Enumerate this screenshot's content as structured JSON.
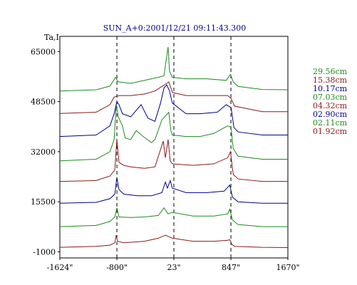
{
  "chart_data": {
    "type": "line",
    "title": "SUN_A+0:2001/12/21 09:11:43.300",
    "ylabel": "Ta,I",
    "xlabel": "",
    "xlim": [
      -1624,
      1670
    ],
    "ylim": [
      -3000,
      70000
    ],
    "x_ticks": [
      "-1624\"",
      "-800\"",
      "23\"",
      "847\"",
      "1670\""
    ],
    "x_tick_values": [
      -1624,
      -800,
      23,
      847,
      1670
    ],
    "y_ticks": [
      "65000",
      "48500",
      "32000",
      "15500",
      "-1000"
    ],
    "y_tick_values": [
      65000,
      48500,
      32000,
      15500,
      -1000
    ],
    "dashed_lines_x": [
      -800,
      23,
      847
    ],
    "grid": false,
    "legend_position": "right",
    "series": [
      {
        "name": "01.92cm",
        "color": "#8b1a1a",
        "offset": 0,
        "points": [
          [
            -1624,
            500
          ],
          [
            -1100,
            800
          ],
          [
            -900,
            1200
          ],
          [
            -830,
            2000
          ],
          [
            -810,
            4500
          ],
          [
            -790,
            2500
          ],
          [
            -700,
            2000
          ],
          [
            -400,
            2500
          ],
          [
            -200,
            3500
          ],
          [
            -100,
            4500
          ],
          [
            0,
            3500
          ],
          [
            300,
            2500
          ],
          [
            600,
            2500
          ],
          [
            800,
            2800
          ],
          [
            830,
            3000
          ],
          [
            860,
            1500
          ],
          [
            900,
            800
          ],
          [
            1300,
            500
          ],
          [
            1670,
            400
          ]
        ]
      },
      {
        "name": "02.11cm",
        "color": "#1f8a1f",
        "offset": 7000,
        "points": [
          [
            -1624,
            7300
          ],
          [
            -1100,
            7700
          ],
          [
            -900,
            9000
          ],
          [
            -830,
            10500
          ],
          [
            -800,
            13500
          ],
          [
            -770,
            10500
          ],
          [
            -600,
            10300
          ],
          [
            -400,
            10500
          ],
          [
            -200,
            11000
          ],
          [
            -120,
            13500
          ],
          [
            -60,
            11500
          ],
          [
            0,
            12000
          ],
          [
            300,
            10800
          ],
          [
            600,
            10800
          ],
          [
            800,
            11500
          ],
          [
            830,
            13000
          ],
          [
            870,
            9500
          ],
          [
            950,
            8000
          ],
          [
            1300,
            7300
          ],
          [
            1670,
            7300
          ]
        ]
      },
      {
        "name": "02.90cm",
        "color": "#00008b",
        "offset": 15000,
        "points": [
          [
            -1624,
            15000
          ],
          [
            -1100,
            15300
          ],
          [
            -900,
            16500
          ],
          [
            -830,
            18000
          ],
          [
            -800,
            23500
          ],
          [
            -770,
            19500
          ],
          [
            -700,
            18000
          ],
          [
            -500,
            17500
          ],
          [
            -300,
            17500
          ],
          [
            -150,
            18500
          ],
          [
            -100,
            22000
          ],
          [
            -70,
            20000
          ],
          [
            -30,
            22500
          ],
          [
            0,
            20000
          ],
          [
            200,
            18500
          ],
          [
            500,
            18500
          ],
          [
            750,
            19000
          ],
          [
            830,
            21000
          ],
          [
            870,
            17000
          ],
          [
            950,
            15500
          ],
          [
            1300,
            15000
          ],
          [
            1670,
            15000
          ]
        ]
      },
      {
        "name": "04.32cm",
        "color": "#8b1a1a",
        "offset": 22000,
        "points": [
          [
            -1624,
            22200
          ],
          [
            -1100,
            22500
          ],
          [
            -900,
            24000
          ],
          [
            -830,
            26000
          ],
          [
            -800,
            36000
          ],
          [
            -770,
            28500
          ],
          [
            -700,
            27500
          ],
          [
            -600,
            27000
          ],
          [
            -400,
            26500
          ],
          [
            -250,
            27000
          ],
          [
            -130,
            35500
          ],
          [
            -100,
            30000
          ],
          [
            -60,
            36000
          ],
          [
            -30,
            29000
          ],
          [
            0,
            28000
          ],
          [
            300,
            27500
          ],
          [
            600,
            28000
          ],
          [
            800,
            30000
          ],
          [
            840,
            32000
          ],
          [
            880,
            24500
          ],
          [
            950,
            23000
          ],
          [
            1300,
            22200
          ],
          [
            1670,
            22200
          ]
        ]
      },
      {
        "name": "07.03cm",
        "color": "#1f8a1f",
        "offset": 29000,
        "points": [
          [
            -1624,
            29000
          ],
          [
            -1100,
            29500
          ],
          [
            -900,
            32000
          ],
          [
            -840,
            36000
          ],
          [
            -810,
            47500
          ],
          [
            -780,
            43500
          ],
          [
            -720,
            40500
          ],
          [
            -680,
            36500
          ],
          [
            -600,
            36000
          ],
          [
            -520,
            39000
          ],
          [
            -420,
            37000
          ],
          [
            -300,
            35000
          ],
          [
            -250,
            36000
          ],
          [
            -150,
            42500
          ],
          [
            -90,
            44000
          ],
          [
            -50,
            45000
          ],
          [
            -20,
            39000
          ],
          [
            0,
            37500
          ],
          [
            200,
            37000
          ],
          [
            400,
            37000
          ],
          [
            600,
            38000
          ],
          [
            720,
            39500
          ],
          [
            800,
            40500
          ],
          [
            850,
            40000
          ],
          [
            880,
            33000
          ],
          [
            950,
            30500
          ],
          [
            1300,
            29500
          ],
          [
            1670,
            29500
          ]
        ]
      },
      {
        "name": "10.17cm",
        "color": "#00008b",
        "offset": 37000,
        "points": [
          [
            -1624,
            37000
          ],
          [
            -1100,
            37500
          ],
          [
            -900,
            40500
          ],
          [
            -840,
            44500
          ],
          [
            -800,
            48500
          ],
          [
            -770,
            47500
          ],
          [
            -720,
            44500
          ],
          [
            -600,
            43500
          ],
          [
            -450,
            47500
          ],
          [
            -350,
            43000
          ],
          [
            -250,
            42000
          ],
          [
            -170,
            48000
          ],
          [
            -120,
            53000
          ],
          [
            -80,
            54000
          ],
          [
            -40,
            52000
          ],
          [
            0,
            48000
          ],
          [
            200,
            44500
          ],
          [
            400,
            44500
          ],
          [
            650,
            45000
          ],
          [
            780,
            47500
          ],
          [
            850,
            46500
          ],
          [
            890,
            40000
          ],
          [
            950,
            38500
          ],
          [
            1300,
            37500
          ],
          [
            1670,
            37500
          ]
        ]
      },
      {
        "name": "15.38cm",
        "color": "#8b1a1a",
        "offset": 44500,
        "points": [
          [
            -1624,
            44600
          ],
          [
            -1100,
            45000
          ],
          [
            -900,
            47500
          ],
          [
            -840,
            50000
          ],
          [
            -760,
            50500
          ],
          [
            -600,
            50500
          ],
          [
            -400,
            51000
          ],
          [
            -250,
            52000
          ],
          [
            -150,
            53500
          ],
          [
            -80,
            54500
          ],
          [
            -50,
            55000
          ],
          [
            -20,
            53000
          ],
          [
            0,
            51500
          ],
          [
            200,
            50500
          ],
          [
            400,
            50500
          ],
          [
            650,
            50500
          ],
          [
            800,
            50500
          ],
          [
            850,
            49500
          ],
          [
            900,
            47000
          ],
          [
            1300,
            45200
          ],
          [
            1670,
            45200
          ]
        ]
      },
      {
        "name": "29.56cm",
        "color": "#1f8a1f",
        "offset": 52000,
        "points": [
          [
            -1624,
            52000
          ],
          [
            -1100,
            52400
          ],
          [
            -900,
            53600
          ],
          [
            -820,
            56500
          ],
          [
            -780,
            55000
          ],
          [
            -600,
            54500
          ],
          [
            -400,
            55500
          ],
          [
            -200,
            56500
          ],
          [
            -120,
            57000
          ],
          [
            -80,
            63500
          ],
          [
            -60,
            66500
          ],
          [
            -40,
            58500
          ],
          [
            0,
            56500
          ],
          [
            200,
            56000
          ],
          [
            500,
            56000
          ],
          [
            780,
            55500
          ],
          [
            840,
            57500
          ],
          [
            880,
            55000
          ],
          [
            950,
            53500
          ],
          [
            1300,
            52500
          ],
          [
            1670,
            52400
          ]
        ]
      }
    ]
  },
  "legend": {
    "items": [
      {
        "label": "29.56cm",
        "color": "#1f8a1f"
      },
      {
        "label": "15.38cm",
        "color": "#8b1a1a"
      },
      {
        "label": "10.17cm",
        "color": "#00008b"
      },
      {
        "label": "07.03cm",
        "color": "#1f8a1f"
      },
      {
        "label": "04.32cm",
        "color": "#8b1a1a"
      },
      {
        "label": "02.90cm",
        "color": "#00008b"
      },
      {
        "label": "02.11cm",
        "color": "#1f8a1f"
      },
      {
        "label": "01.92cm",
        "color": "#8b1a1a"
      }
    ]
  },
  "colors": {
    "title": "#00008b",
    "axis": "#000000"
  }
}
